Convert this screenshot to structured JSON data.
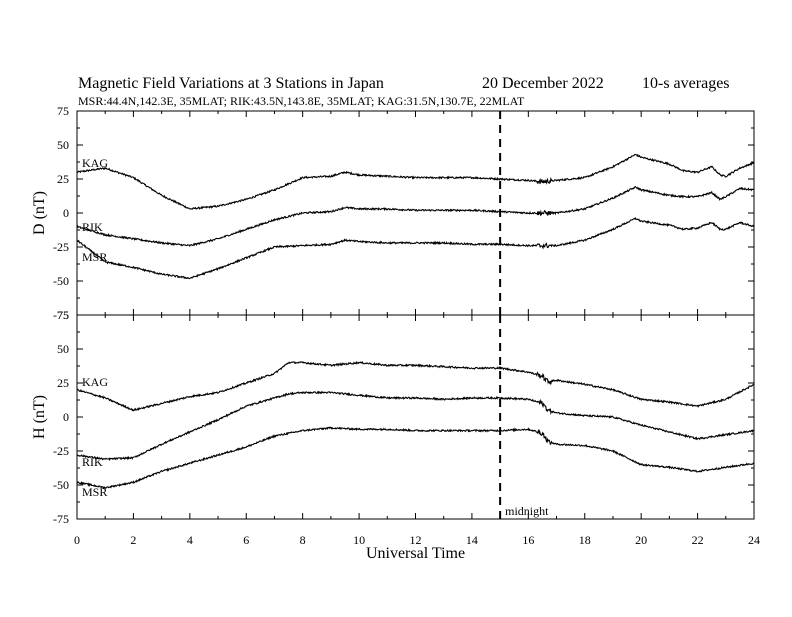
{
  "header": {
    "title_left": "Magnetic Field Variations at 3 Stations in Japan",
    "title_date": "20 December 2022",
    "title_avg": "10-s averages",
    "subtitle": "MSR:44.4N,142.3E, 35MLAT;  RIK:43.5N,143.8E, 35MLAT;  KAG:31.5N,130.7E, 22MLAT"
  },
  "chart_data": [
    {
      "type": "line",
      "panel": "D",
      "ylabel": "D (nT)",
      "xlabel": "",
      "ylim": [
        -75,
        75
      ],
      "yticks": [
        "75",
        "50",
        "25",
        "0",
        "-25",
        "-50",
        "-75"
      ],
      "xlim": [
        0,
        24
      ],
      "series": [
        {
          "name": "KAG",
          "x": [
            0,
            1,
            2,
            3,
            4,
            5,
            6,
            7,
            8,
            9,
            9.5,
            10,
            11,
            12,
            13,
            14,
            15,
            16,
            16.5,
            17,
            18,
            19,
            19.8,
            20,
            21,
            21.5,
            22,
            22.5,
            22.8,
            23,
            23.5,
            24
          ],
          "values": [
            30,
            33,
            26,
            13,
            3,
            5,
            10,
            17,
            26,
            27,
            30,
            28,
            27,
            26,
            26,
            26,
            25,
            24,
            23,
            24,
            26,
            34,
            43,
            41,
            36,
            31,
            30,
            34,
            28,
            27,
            33,
            37
          ]
        },
        {
          "name": "RIK",
          "x": [
            0,
            1,
            2,
            3,
            4,
            5,
            6,
            7,
            8,
            9,
            9.5,
            10,
            11,
            12,
            13,
            14,
            15,
            16,
            16.5,
            17,
            18,
            19,
            19.8,
            20,
            21,
            21.5,
            22,
            22.5,
            22.8,
            23,
            23.5,
            24
          ],
          "values": [
            -10,
            -16,
            -19,
            -22,
            -24,
            -19,
            -12,
            -5,
            0,
            1,
            4,
            3,
            3,
            2,
            2,
            2,
            1,
            0,
            0,
            0,
            3,
            11,
            19,
            17,
            13,
            12,
            12,
            15,
            10,
            12,
            18,
            17
          ]
        },
        {
          "name": "MSR",
          "x": [
            0,
            1,
            2,
            3,
            4,
            5,
            6,
            7,
            8,
            9,
            9.5,
            10,
            11,
            12,
            13,
            14,
            15,
            16,
            16.5,
            17,
            18,
            19,
            19.8,
            20,
            21,
            21.5,
            22,
            22.5,
            22.8,
            23,
            23.5,
            24
          ],
          "values": [
            -20,
            -36,
            -40,
            -45,
            -48,
            -41,
            -33,
            -25,
            -24,
            -23,
            -20,
            -21,
            -22,
            -22,
            -22,
            -23,
            -23,
            -24,
            -24,
            -24,
            -20,
            -12,
            -4,
            -6,
            -9,
            -12,
            -11,
            -7,
            -12,
            -12,
            -7,
            -10
          ]
        }
      ]
    },
    {
      "type": "line",
      "panel": "H",
      "ylabel": "H (nT)",
      "xlabel": "Universal Time",
      "ylim": [
        -75,
        75
      ],
      "yticks": [
        "75",
        "50",
        "25",
        "0",
        "-25",
        "-50",
        "-75"
      ],
      "xlim": [
        0,
        24
      ],
      "xticks": [
        "0",
        "2",
        "4",
        "6",
        "8",
        "10",
        "12",
        "14",
        "16",
        "18",
        "20",
        "22",
        "24"
      ],
      "series": [
        {
          "name": "KAG",
          "x": [
            0,
            1,
            2,
            3,
            4,
            5,
            6,
            7,
            7.5,
            8,
            9,
            10,
            11,
            12,
            13,
            14,
            15,
            16,
            16.5,
            16.7,
            17,
            18,
            19,
            20,
            21,
            22,
            23,
            24
          ],
          "values": [
            20,
            14,
            5,
            10,
            15,
            18,
            25,
            32,
            40,
            40,
            38,
            40,
            38,
            38,
            37,
            36,
            36,
            33,
            30,
            26,
            27,
            24,
            20,
            13,
            11,
            8,
            13,
            24
          ]
        },
        {
          "name": "RIK",
          "x": [
            0,
            1,
            2,
            3,
            4,
            5,
            6,
            7,
            7.5,
            8,
            9,
            10,
            11,
            12,
            13,
            14,
            15,
            16,
            16.5,
            16.7,
            17,
            18,
            19,
            20,
            21,
            22,
            23,
            24
          ],
          "values": [
            -28,
            -31,
            -30,
            -20,
            -11,
            -2,
            8,
            14,
            17,
            18,
            18,
            16,
            14,
            14,
            13,
            14,
            14,
            13,
            10,
            5,
            3,
            1,
            0,
            -6,
            -11,
            -16,
            -13,
            -10
          ]
        },
        {
          "name": "MSR",
          "x": [
            0,
            1,
            2,
            3,
            4,
            5,
            6,
            7,
            7.5,
            8,
            9,
            10,
            11,
            12,
            13,
            14,
            15,
            16,
            16.5,
            16.7,
            17,
            18,
            19,
            20,
            21,
            22,
            23,
            24
          ],
          "values": [
            -48,
            -52,
            -48,
            -40,
            -34,
            -28,
            -22,
            -14,
            -12,
            -10,
            -8,
            -9,
            -9,
            -10,
            -10,
            -10,
            -10,
            -9,
            -12,
            -18,
            -20,
            -21,
            -25,
            -35,
            -37,
            -40,
            -37,
            -34
          ]
        }
      ]
    }
  ],
  "annotation": {
    "midnight_label": "midnight",
    "midnight_x": 15
  }
}
